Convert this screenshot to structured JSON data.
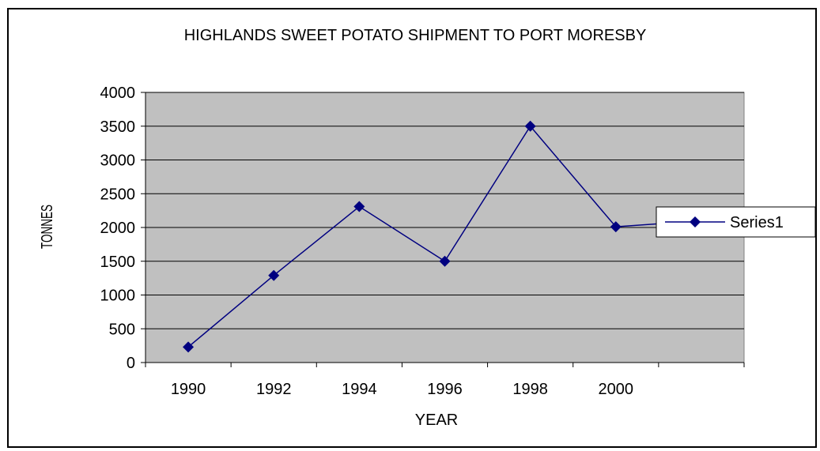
{
  "chart_data": {
    "type": "line",
    "title": "HIGHLANDS SWEET POTATO SHIPMENT TO PORT MORESBY",
    "xlabel": "YEAR",
    "ylabel": "TONNES",
    "categories": [
      "1990",
      "1992",
      "1994",
      "1996",
      "1998",
      "2000",
      ""
    ],
    "series": [
      {
        "name": "Series1",
        "values": [
          230,
          1290,
          2310,
          1500,
          3500,
          2010,
          2100
        ]
      }
    ],
    "ylim": [
      0,
      4000
    ],
    "yticks": [
      "0",
      "500",
      "1000",
      "1500",
      "2000",
      "2500",
      "3000",
      "3500",
      "4000"
    ],
    "grid": true,
    "legend_position": "right",
    "colors": {
      "series": "#000080",
      "plot_background": "#C0C0C0",
      "gridline": "#000000"
    }
  }
}
